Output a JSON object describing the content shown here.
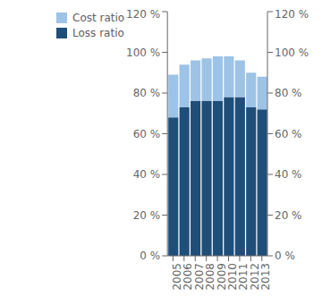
{
  "chart_data": {
    "type": "bar",
    "stacked": true,
    "categories": [
      "2005",
      "2006",
      "2007",
      "2008",
      "2009",
      "2010",
      "2011",
      "2012",
      "2013"
    ],
    "series": [
      {
        "name": "Loss ratio",
        "color": "#1f4e79",
        "values": [
          68,
          73,
          76,
          76,
          76,
          78,
          78,
          73,
          72
        ]
      },
      {
        "name": "Cost ratio",
        "color": "#9dc3e6",
        "values": [
          21,
          21,
          20,
          21,
          22,
          20,
          18,
          17,
          16
        ]
      }
    ],
    "ylim": [
      0,
      120
    ],
    "yticks": [
      {
        "value": 0,
        "label": "0 %"
      },
      {
        "value": 20,
        "label": "20 %"
      },
      {
        "value": 40,
        "label": "40 %"
      },
      {
        "value": 60,
        "label": "60 %"
      },
      {
        "value": 80,
        "label": "80 %"
      },
      {
        "value": 100,
        "label": "100 %"
      },
      {
        "value": 120,
        "label": "120 %"
      }
    ],
    "y2lim": [
      0,
      120
    ],
    "y2ticks": [
      {
        "value": 0,
        "label": "0 %"
      },
      {
        "value": 20,
        "label": "20 %"
      },
      {
        "value": 40,
        "label": "40 %"
      },
      {
        "value": 60,
        "label": "60 %"
      },
      {
        "value": 80,
        "label": "80 %"
      },
      {
        "value": 100,
        "label": "100 %"
      },
      {
        "value": 120,
        "label": "120 %"
      }
    ],
    "grid": false,
    "legend": "upper left"
  }
}
